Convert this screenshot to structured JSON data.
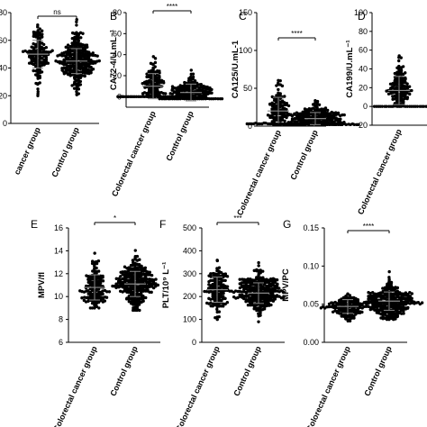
{
  "chart_data": [
    {
      "id": "A",
      "panel_label": "",
      "type": "scatter",
      "title": "",
      "ylabel": "",
      "ylim": [
        0,
        80
      ],
      "yticks": [
        0,
        20,
        40,
        60,
        80
      ],
      "ytick_labels": [
        "0",
        "20",
        "40",
        "60",
        "80"
      ],
      "categories": [
        "Colorectal cancer group",
        "Control group"
      ],
      "category_labels": [
        "cancer group",
        "Control group"
      ],
      "series": [
        {
          "name": "Colorectal cancer group",
          "mean": 50,
          "sd": 10,
          "n": 150,
          "min": 20,
          "max": 78
        },
        {
          "name": "Control group",
          "mean": 45,
          "sd": 9,
          "n": 280,
          "min": 20,
          "max": 75
        }
      ],
      "significance": "ns"
    },
    {
      "id": "B",
      "panel_label": "B",
      "type": "scatter",
      "title": "",
      "ylabel": "CA72-4/U.mL⁻¹",
      "ylim": [
        -10,
        80
      ],
      "yticks": [
        0,
        20,
        40,
        60,
        80
      ],
      "ytick_labels": [
        "0",
        "20",
        "40",
        "60",
        "80"
      ],
      "categories": [
        "Colorectal cancer group",
        "Control group"
      ],
      "category_labels": [
        "Colorectal cancer group",
        "Control group"
      ],
      "series": [
        {
          "name": "Colorectal cancer group",
          "mean": 10,
          "sd": 12,
          "n": 140,
          "min": 0,
          "max": 78
        },
        {
          "name": "Control group",
          "mean": 4,
          "sd": 8,
          "n": 170,
          "min": -2,
          "max": 60
        }
      ],
      "significance": "****"
    },
    {
      "id": "C",
      "panel_label": "C",
      "type": "scatter",
      "title": "",
      "ylabel": "CA125/U.mL-1",
      "ylim": [
        0,
        150
      ],
      "yticks": [
        0,
        50,
        100,
        150
      ],
      "ytick_labels": [
        "0",
        "50",
        "100",
        "150"
      ],
      "categories": [
        "Colorectal cancer group",
        "Control group"
      ],
      "category_labels": [
        "Colorectal cancer group",
        "Control group"
      ],
      "series": [
        {
          "name": "Colorectal cancer group",
          "mean": 20,
          "sd": 18,
          "n": 140,
          "min": 3,
          "max": 105
        },
        {
          "name": "Control group",
          "mean": 10,
          "sd": 8,
          "n": 220,
          "min": 2,
          "max": 80
        }
      ],
      "significance": "****"
    },
    {
      "id": "D",
      "panel_label": "D",
      "type": "scatter",
      "title": "",
      "ylabel": "CA199/U.mL⁻¹",
      "ylim": [
        -20,
        100
      ],
      "yticks": [
        -20,
        0,
        20,
        40,
        60,
        80,
        100
      ],
      "ytick_labels": [
        "-20",
        "0",
        "20",
        "40",
        "60",
        "80",
        "100"
      ],
      "categories": [
        "Colorectal cancer group",
        "Control group"
      ],
      "category_labels": [
        "Colorectal cancer group",
        "Contro"
      ],
      "series": [
        {
          "name": "Colorectal cancer group",
          "mean": 17,
          "sd": 15,
          "n": 160,
          "min": 0,
          "max": 95
        }
      ],
      "significance": ""
    },
    {
      "id": "E",
      "panel_label": "E",
      "type": "scatter",
      "title": "",
      "ylabel": "MPV/fl",
      "ylim": [
        6,
        16
      ],
      "yticks": [
        6,
        8,
        10,
        12,
        14,
        16
      ],
      "ytick_labels": [
        "6",
        "8",
        "10",
        "12",
        "14",
        "16"
      ],
      "categories": [
        "Colorectal cancer group",
        "Control group"
      ],
      "category_labels": [
        "Colorectal cancer group",
        "Control group"
      ],
      "series": [
        {
          "name": "Colorectal cancer group",
          "mean": 10.8,
          "sd": 1.1,
          "n": 150,
          "min": 9,
          "max": 14.8
        },
        {
          "name": "Control group",
          "mean": 11.1,
          "sd": 1.1,
          "n": 280,
          "min": 8.8,
          "max": 14.5
        }
      ],
      "significance": "*"
    },
    {
      "id": "F",
      "panel_label": "F",
      "type": "scatter",
      "title": "",
      "ylabel": "PLT/10⁹ L⁻¹",
      "ylim": [
        0,
        500
      ],
      "yticks": [
        0,
        100,
        200,
        300,
        400,
        500
      ],
      "ytick_labels": [
        "0",
        "100",
        "200",
        "300",
        "400",
        "500"
      ],
      "categories": [
        "Colorectal cancer group",
        "Control group"
      ],
      "category_labels": [
        "Colorectal cancer group",
        "Control group"
      ],
      "series": [
        {
          "name": "Colorectal cancer group",
          "mean": 230,
          "sd": 55,
          "n": 150,
          "min": 100,
          "max": 460
        },
        {
          "name": "Control group",
          "mean": 215,
          "sd": 45,
          "n": 280,
          "min": 90,
          "max": 380
        }
      ],
      "significance": "***"
    },
    {
      "id": "G",
      "panel_label": "G",
      "type": "scatter",
      "title": "",
      "ylabel": "MPV/PC",
      "ylim": [
        0,
        0.15
      ],
      "yticks": [
        0,
        0.05,
        0.1,
        0.15
      ],
      "ytick_labels": [
        "0.00",
        "0.05",
        "0.10",
        "0.15"
      ],
      "categories": [
        "Colorectal cancer group",
        "Control group"
      ],
      "category_labels": [
        "Colorectal cancer group",
        "Control group"
      ],
      "series": [
        {
          "name": "Colorectal cancer group",
          "mean": 0.047,
          "sd": 0.009,
          "n": 150,
          "min": 0.028,
          "max": 0.085
        },
        {
          "name": "Control group",
          "mean": 0.054,
          "sd": 0.012,
          "n": 280,
          "min": 0.03,
          "max": 0.12
        }
      ],
      "significance": "****"
    }
  ]
}
